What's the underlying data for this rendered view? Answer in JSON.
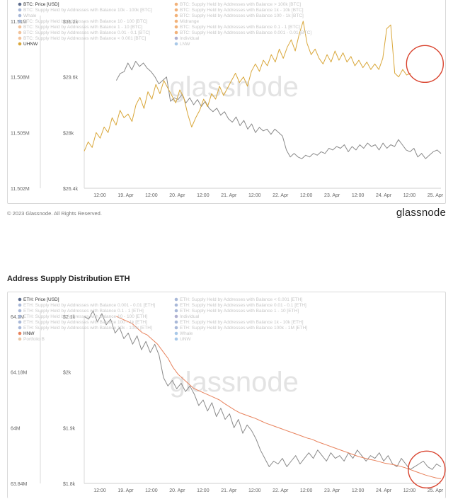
{
  "footer": {
    "copyright": "© 2023 Glassnode. All Rights Reserved.",
    "logo": "glassnode"
  },
  "section_title": "Address Supply Distribution ETH",
  "watermark": "glassnode",
  "colors": {
    "price": "#8a8a8a",
    "btc_uhnw": "#d9a73a",
    "eth_hnw": "#e8825c",
    "highlight": "#d9432e"
  },
  "chart_data": [
    {
      "type": "line",
      "title": "",
      "legend_left": [
        {
          "label": "BTC: Price [USD]",
          "color": "#5b6b8c",
          "active": true
        },
        {
          "label": "BTC: Supply Held by Addresses with Balance 10k - 100k [BTC]",
          "color": "#a8b8d8",
          "active": false
        },
        {
          "label": "Whale",
          "color": "#a8b8d8",
          "active": false
        },
        {
          "label": "BTC: Supply Held by Addresses with Balance 10 - 100 [BTC]",
          "color": "#a8b8d8",
          "active": false
        },
        {
          "label": "BTC: Supply Held by Addresses with Balance 1 - 10 [BTC]",
          "color": "#f2c29a",
          "active": false
        },
        {
          "label": "BTC: Supply Held by Addresses with Balance 0.01 - 0.1 [BTC]",
          "color": "#f2c29a",
          "active": false
        },
        {
          "label": "BTC: Supply Held by Addresses with Balance < 0.001 [BTC]",
          "color": "#f2c29a",
          "active": false
        },
        {
          "label": "UHNW",
          "color": "#d9a73a",
          "active": true
        }
      ],
      "legend_right": [
        {
          "label": "BTC: Supply Held by Addresses with Balance > 100k [BTC]",
          "color": "#f2b27a",
          "active": false
        },
        {
          "label": "BTC: Supply Held by Addresses with Balance 1k - 10k [BTC]",
          "color": "#f2b27a",
          "active": false
        },
        {
          "label": "BTC: Supply Held by Addresses with Balance 100 - 1k [BTC]",
          "color": "#f2b27a",
          "active": false
        },
        {
          "label": "Midrange",
          "color": "#f2b27a",
          "active": false
        },
        {
          "label": "BTC: Supply Held by Addresses with Balance 0.1 - 1 [BTC]",
          "color": "#f2b27a",
          "active": false
        },
        {
          "label": "BTC: Supply Held by Addresses with Balance 0.001 - 0.01 [BTC]",
          "color": "#f2b27a",
          "active": false
        },
        {
          "label": "Individual",
          "color": "#b0b0d0",
          "active": false
        },
        {
          "label": "LNW",
          "color": "#a8c8e8",
          "active": false
        }
      ],
      "x_ticks": [
        "12:00",
        "19. Apr",
        "12:00",
        "20. Apr",
        "12:00",
        "21. Apr",
        "12:00",
        "22. Apr",
        "12:00",
        "23. Apr",
        "12:00",
        "24. Apr",
        "12:00",
        "25. Apr"
      ],
      "y_left_ticks": [
        "11.51M",
        "11.508M",
        "11.505M",
        "11.502M"
      ],
      "y_right_ticks": [
        "$31.2k",
        "$29.6k",
        "$28k",
        "$26.4k"
      ],
      "ylim_right": [
        26400,
        31200
      ],
      "ylim_left": [
        11502000,
        11511000
      ],
      "series": [
        {
          "name": "BTC: Price [USD]",
          "axis": "right",
          "color": "#8a8a8a",
          "x_start": 0.09,
          "x_end": 1.0,
          "values": [
            29500,
            29700,
            29750,
            30000,
            29800,
            30050,
            29900,
            30000,
            29850,
            29750,
            29600,
            29400,
            29500,
            29600,
            28900,
            29000,
            28950,
            29100,
            28850,
            29000,
            28800,
            28950,
            28750,
            28900,
            28700,
            28600,
            28700,
            28500,
            28600,
            28400,
            28300,
            28450,
            28200,
            28350,
            28100,
            28250,
            28000,
            28150,
            28050,
            28100,
            27950,
            28100,
            28000,
            27900,
            27500,
            27300,
            27400,
            27300,
            27250,
            27350,
            27300,
            27400,
            27350,
            27450,
            27400,
            27550,
            27500,
            27600,
            27550,
            27650,
            27450,
            27600,
            27500,
            27650,
            27550,
            27700,
            27600,
            27650,
            27500,
            27700,
            27550,
            27650,
            27600,
            27800,
            27650,
            27500,
            27450,
            27550,
            27300,
            27400,
            27250,
            27350,
            27450,
            27500,
            27400
          ]
        },
        {
          "name": "UHNW",
          "axis": "left",
          "color": "#d9a73a",
          "x_start": 0.0,
          "x_end": 0.915,
          "values": [
            11504000,
            11504500,
            11504200,
            11505000,
            11504700,
            11505300,
            11505000,
            11505800,
            11505400,
            11506200,
            11505800,
            11506000,
            11505600,
            11506500,
            11506900,
            11506300,
            11507200,
            11506800,
            11507600,
            11507100,
            11507800,
            11507400,
            11507000,
            11506600,
            11507300,
            11506900,
            11506000,
            11505300,
            11505800,
            11506200,
            11506800,
            11506400,
            11507100,
            11506800,
            11507500,
            11507000,
            11507400,
            11507800,
            11508200,
            11507700,
            11508000,
            11507500,
            11508300,
            11508700,
            11508300,
            11508900,
            11508600,
            11509200,
            11508800,
            11509500,
            11509000,
            11509600,
            11510000,
            11509400,
            11510300,
            11511000,
            11509800,
            11509200,
            11509500,
            11509000,
            11508700,
            11509200,
            11508800,
            11509400,
            11508900,
            11509300,
            11508800,
            11509100,
            11508600,
            11508900,
            11508500,
            11508800,
            11508400,
            11508700,
            11508400,
            11509000,
            11510600,
            11510800,
            11508200,
            11508000,
            11508400,
            11508100,
            11508200
          ]
        }
      ],
      "highlight": {
        "x": 0.955,
        "y_left": 11508700
      }
    },
    {
      "type": "line",
      "title": "",
      "legend_left": [
        {
          "label": "ETH: Price [USD]",
          "color": "#5b6b8c",
          "active": true
        },
        {
          "label": "ETH: Supply Held by Addresses with Balance 0.001 - 0.01 [ETH]",
          "color": "#a8b8d8",
          "active": false
        },
        {
          "label": "ETH: Supply Held by Addresses with Balance 0.1 - 1 [ETH]",
          "color": "#a8b8d8",
          "active": false
        },
        {
          "label": "ETH: Supply Held by Addresses with Balance 10 - 100 [ETH]",
          "color": "#a8b8d8",
          "active": false
        },
        {
          "label": "ETH: Supply Held by Addresses with Balance 100 - 1k [ETH]",
          "color": "#a8b8d8",
          "active": false
        },
        {
          "label": "ETH: Supply Held by Addresses with Balance 10k - 100k [ETH]",
          "color": "#a8b8d8",
          "active": false
        },
        {
          "label": "HNW",
          "color": "#e8825c",
          "active": true
        },
        {
          "label": "Portfolio B",
          "color": "#e8c8a8",
          "active": false
        }
      ],
      "legend_right": [
        {
          "label": "ETH: Supply Held by Addresses with Balance < 0.001 [ETH]",
          "color": "#a8b8d8",
          "active": false
        },
        {
          "label": "ETH: Supply Held by Addresses with Balance 0.01 - 0.1 [ETH]",
          "color": "#a8b8d8",
          "active": false
        },
        {
          "label": "ETH: Supply Held by Addresses with Balance 1 - 10 [ETH]",
          "color": "#a8b8d8",
          "active": false
        },
        {
          "label": "Individual",
          "color": "#b0b0d0",
          "active": false
        },
        {
          "label": "ETH: Supply Held by Addresses with Balance 1k - 10k [ETH]",
          "color": "#a8b8d8",
          "active": false
        },
        {
          "label": "ETH: Supply Held by Addresses with Balance 100k - 1M [ETH]",
          "color": "#a8b8d8",
          "active": false
        },
        {
          "label": "Whale",
          "color": "#a8c8e8",
          "active": false
        },
        {
          "label": "UNW",
          "color": "#a8c8e8",
          "active": false
        }
      ],
      "x_ticks": [
        "12:00",
        "19. Apr",
        "12:00",
        "20. Apr",
        "12:00",
        "21. Apr",
        "12:00",
        "22. Apr",
        "12:00",
        "23. Apr",
        "12:00",
        "24. Apr",
        "12:00",
        "25. Apr"
      ],
      "y_left_ticks": [
        "64.2M",
        "64.18M",
        "64M",
        "63.84M"
      ],
      "y_right_ticks": [
        "$2.1k",
        "$2k",
        "$1.9k",
        "$1.8k"
      ],
      "ylim_right": [
        1800,
        2100
      ],
      "ylim_left": [
        63840000,
        64200000
      ],
      "series": [
        {
          "name": "ETH: Price [USD]",
          "axis": "right",
          "color": "#8a8a8a",
          "x_start": 0.0,
          "x_end": 1.0,
          "values": [
            2100,
            2095,
            2110,
            2090,
            2105,
            2085,
            2095,
            2070,
            2080,
            2060,
            2070,
            2050,
            2065,
            2040,
            2055,
            2035,
            2050,
            2030,
            1990,
            1975,
            1985,
            1970,
            1980,
            1965,
            1975,
            1960,
            1940,
            1950,
            1930,
            1945,
            1920,
            1935,
            1915,
            1925,
            1900,
            1915,
            1890,
            1905,
            1895,
            1880,
            1860,
            1845,
            1830,
            1840,
            1835,
            1845,
            1830,
            1840,
            1850,
            1835,
            1845,
            1855,
            1845,
            1860,
            1850,
            1840,
            1855,
            1845,
            1850,
            1840,
            1855,
            1845,
            1860,
            1850,
            1840,
            1850,
            1845,
            1855,
            1840,
            1850,
            1835,
            1830,
            1845,
            1835,
            1825,
            1830,
            1835,
            1840,
            1830,
            1825,
            1835,
            1830
          ]
        },
        {
          "name": "HNW",
          "axis": "left",
          "color": "#e8825c",
          "x_start": 0.09,
          "x_end": 1.0,
          "values": [
            64200000,
            64195000,
            64190000,
            64185000,
            64175000,
            64165000,
            64160000,
            64150000,
            64140000,
            64125000,
            64110000,
            64090000,
            64075000,
            64065000,
            64055000,
            64045000,
            64040000,
            64035000,
            64030000,
            64025000,
            64020000,
            64012000,
            64005000,
            63998000,
            63992000,
            63988000,
            63984000,
            63980000,
            63975000,
            63970000,
            63966000,
            63962000,
            63958000,
            63954000,
            63950000,
            63946000,
            63942000,
            63938000,
            63935000,
            63930000,
            63926000,
            63922000,
            63918000,
            63914000,
            63910000,
            63906000,
            63902000,
            63898000,
            63895000,
            63892000,
            63890000,
            63887000,
            63884000,
            63882000,
            63880000,
            63877000,
            63874000,
            63870000,
            63866000,
            63862000,
            63858000,
            63855000,
            63852000,
            63850000
          ]
        }
      ],
      "highlight": {
        "x": 0.96,
        "y_left": 63870000
      }
    }
  ]
}
